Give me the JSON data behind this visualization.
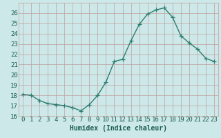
{
  "x": [
    0,
    1,
    2,
    3,
    4,
    5,
    6,
    7,
    8,
    9,
    10,
    11,
    12,
    13,
    14,
    15,
    16,
    17,
    18,
    19,
    20,
    21,
    22,
    23
  ],
  "y": [
    18.1,
    18.0,
    17.5,
    17.2,
    17.1,
    17.0,
    16.8,
    16.5,
    17.1,
    18.0,
    19.3,
    21.3,
    21.5,
    23.3,
    24.9,
    25.9,
    26.3,
    26.5,
    25.6,
    23.8,
    23.1,
    22.5,
    21.6,
    21.3
  ],
  "line_color": "#2e7d6e",
  "marker": "+",
  "markersize": 4,
  "bg_color": "#cce8e8",
  "grid_major_color": "#c0a0a0",
  "grid_minor_color": "#d8bebe",
  "xlabel": "Humidex (Indice chaleur)",
  "xlim": [
    -0.5,
    23.5
  ],
  "ylim": [
    16,
    27
  ],
  "yticks": [
    16,
    17,
    18,
    19,
    20,
    21,
    22,
    23,
    24,
    25,
    26
  ],
  "xticks": [
    0,
    1,
    2,
    3,
    4,
    5,
    6,
    7,
    8,
    9,
    10,
    11,
    12,
    13,
    14,
    15,
    16,
    17,
    18,
    19,
    20,
    21,
    22,
    23
  ],
  "linewidth": 1.0,
  "xlabel_fontsize": 7,
  "tick_fontsize": 6.5,
  "label_color": "#1a5c50"
}
